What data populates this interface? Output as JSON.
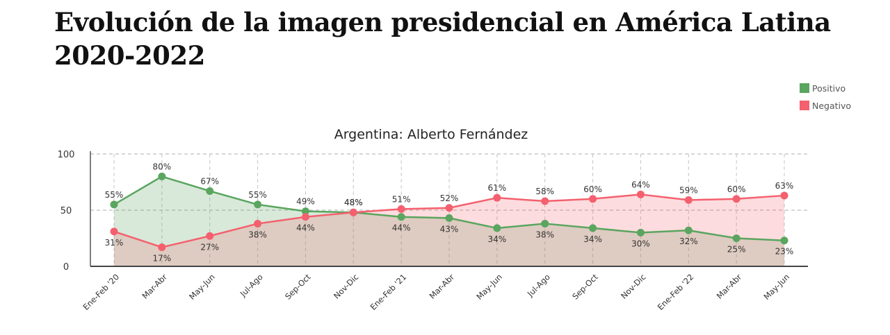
{
  "header": {
    "title_line1": "Evolución de la imagen presidencial en América Latina",
    "title_line2": "2020-2022"
  },
  "chart_data": {
    "type": "line",
    "title": "Argentina: Alberto Fernández",
    "categories": [
      "Ene-Feb '20",
      "Mar-Abr",
      "May-Jun",
      "Jul-Ago",
      "Sep-Oct",
      "Nov-Dic",
      "Ene-Feb '21",
      "Mar-Abr",
      "May-Jun",
      "Jul-Ago",
      "Sep-Oct",
      "Nov-Dic",
      "Ene-Feb '22",
      "Mar-Abr",
      "May-Jun"
    ],
    "series": [
      {
        "name": "Positivo",
        "color": "#5aa55f",
        "values": [
          55,
          80,
          67,
          55,
          49,
          48,
          44,
          43,
          34,
          38,
          34,
          30,
          32,
          25,
          23
        ]
      },
      {
        "name": "Negativo",
        "color": "#f4606e",
        "values": [
          31,
          17,
          27,
          38,
          44,
          48,
          51,
          52,
          61,
          58,
          60,
          64,
          59,
          60,
          63
        ]
      }
    ],
    "yticks": [
      0,
      50,
      100
    ],
    "ylim": [
      0,
      100
    ],
    "grid": true,
    "legend_position": "top-right"
  }
}
